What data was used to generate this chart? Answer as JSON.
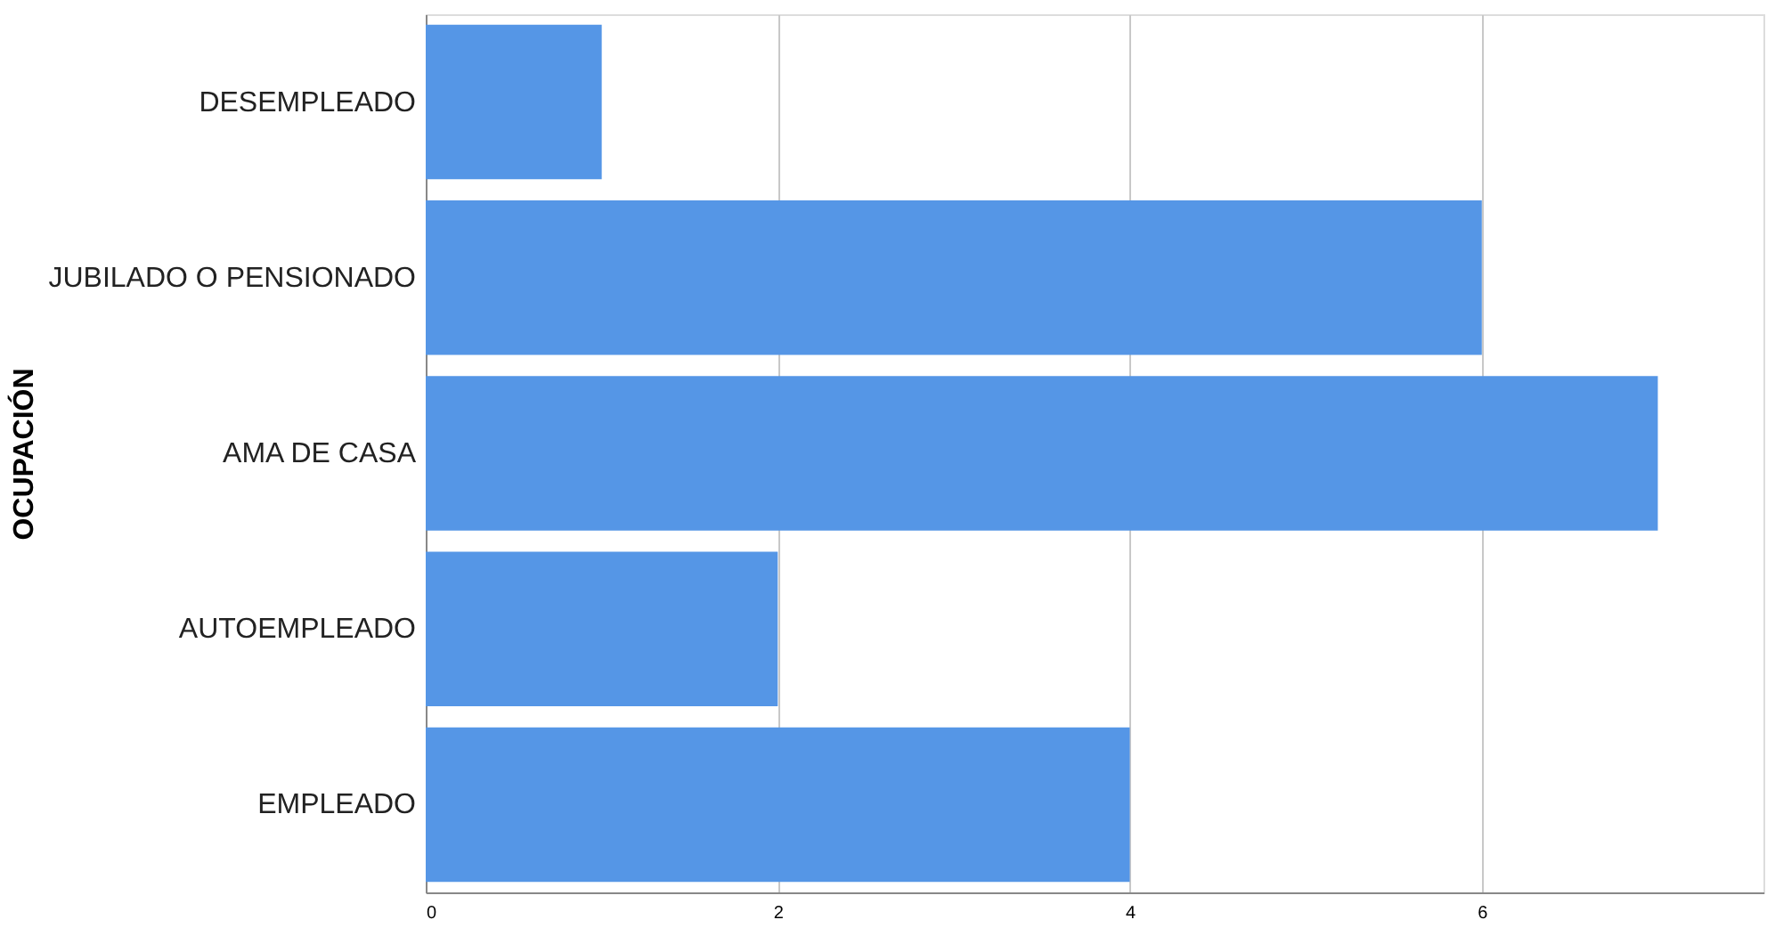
{
  "chart_data": {
    "type": "bar",
    "orientation": "horizontal",
    "ylabel": "OCUPACIÓN",
    "categories": [
      "DESEMPLEADO",
      "JUBILADO O PENSIONADO",
      "AMA DE CASA",
      "AUTOEMPLEADO",
      "EMPLEADO"
    ],
    "values": [
      1,
      6,
      7,
      2,
      4
    ],
    "color": "#5596e6",
    "xlim": [
      0,
      7.6
    ],
    "xticks": [
      0,
      2,
      4,
      6
    ],
    "grid": "x"
  }
}
